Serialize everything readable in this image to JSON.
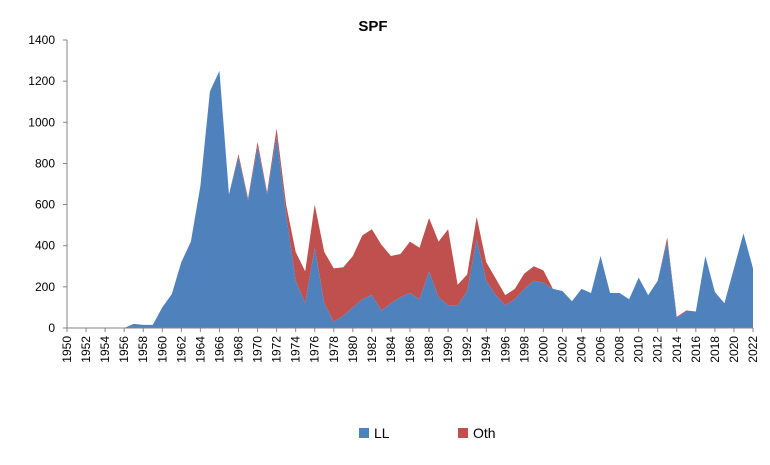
{
  "chart_data": {
    "type": "area",
    "title": "SPF",
    "xlabel": "",
    "ylabel": "",
    "ylim": [
      0,
      1400
    ],
    "yticks": [
      "0",
      "200",
      "400",
      "600",
      "800",
      "1000",
      "1200",
      "1400"
    ],
    "x": [
      1950,
      1951,
      1952,
      1953,
      1954,
      1955,
      1956,
      1957,
      1958,
      1959,
      1960,
      1961,
      1962,
      1963,
      1964,
      1965,
      1966,
      1967,
      1968,
      1969,
      1970,
      1971,
      1972,
      1973,
      1974,
      1975,
      1976,
      1977,
      1978,
      1979,
      1980,
      1981,
      1982,
      1983,
      1984,
      1985,
      1986,
      1987,
      1988,
      1989,
      1990,
      1991,
      1992,
      1993,
      1994,
      1995,
      1996,
      1997,
      1998,
      1999,
      2000,
      2001,
      2002,
      2003,
      2004,
      2005,
      2006,
      2007,
      2008,
      2009,
      2010,
      2011,
      2012,
      2013,
      2014,
      2015,
      2016,
      2017,
      2018,
      2019,
      2020,
      2021,
      2022
    ],
    "xticks": [
      "1950",
      "1952",
      "1954",
      "1956",
      "1958",
      "1960",
      "1962",
      "1964",
      "1966",
      "1968",
      "1970",
      "1972",
      "1974",
      "1976",
      "1978",
      "1980",
      "1982",
      "1984",
      "1986",
      "1988",
      "1990",
      "1992",
      "1994",
      "1996",
      "1998",
      "2000",
      "2002",
      "2004",
      "2006",
      "2008",
      "2010",
      "2012",
      "2014",
      "2016",
      "2018",
      "2020",
      "2022"
    ],
    "series": [
      {
        "name": "LL",
        "color": "#4f81bd",
        "values": [
          0,
          0,
          0,
          0,
          0,
          0,
          0,
          20,
          15,
          15,
          100,
          165,
          320,
          420,
          690,
          1150,
          1250,
          650,
          830,
          620,
          880,
          650,
          930,
          550,
          230,
          120,
          390,
          120,
          30,
          60,
          100,
          140,
          160,
          85,
          120,
          150,
          170,
          140,
          275,
          150,
          110,
          110,
          180,
          430,
          230,
          160,
          110,
          140,
          190,
          230,
          220,
          190,
          180,
          130,
          190,
          170,
          350,
          170,
          170,
          140,
          245,
          160,
          230,
          420,
          50,
          80,
          80,
          350,
          175,
          120,
          290,
          460,
          290
        ]
      },
      {
        "name": "Oth",
        "color": "#c0504d",
        "values": [
          0,
          0,
          0,
          0,
          0,
          0,
          0,
          0,
          0,
          0,
          0,
          0,
          0,
          0,
          0,
          0,
          0,
          0,
          15,
          10,
          25,
          10,
          40,
          50,
          140,
          155,
          210,
          250,
          260,
          235,
          250,
          310,
          320,
          320,
          230,
          210,
          250,
          250,
          260,
          270,
          370,
          100,
          80,
          110,
          90,
          80,
          50,
          50,
          75,
          70,
          60,
          0,
          0,
          0,
          0,
          0,
          0,
          0,
          0,
          0,
          0,
          0,
          0,
          20,
          5,
          5,
          0,
          0,
          0,
          0,
          0,
          0,
          0
        ]
      }
    ],
    "legend": [
      "LL",
      "Oth"
    ],
    "legend_position": "bottom",
    "grid": false
  }
}
